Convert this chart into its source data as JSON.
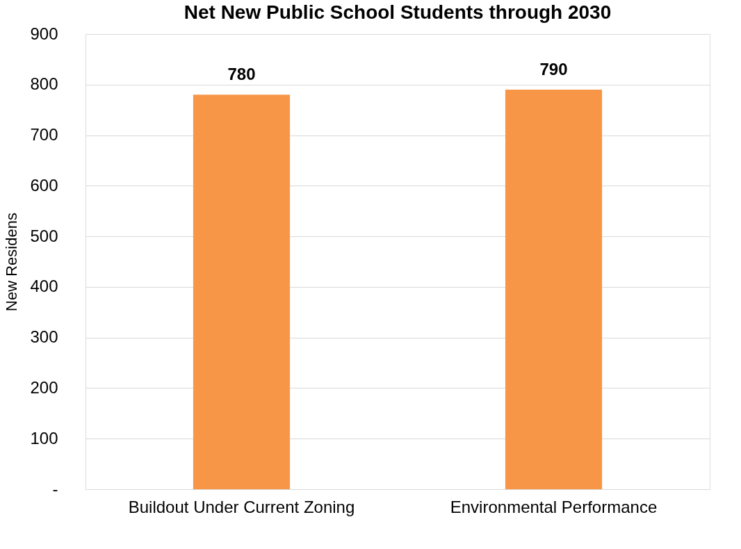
{
  "chart_data": {
    "type": "bar",
    "title": "Net New Public School Students through 2030",
    "ylabel": "New Residens",
    "categories": [
      "Buildout Under Current Zoning",
      "Environmental Performance"
    ],
    "values": [
      780,
      790
    ],
    "color": "#f79646",
    "ylim": [
      0,
      900
    ],
    "yticks": [
      {
        "value": 0,
        "label": "-"
      },
      100,
      200,
      300,
      400,
      500,
      600,
      700,
      800,
      900
    ],
    "grid": "y",
    "data_labels": true
  }
}
